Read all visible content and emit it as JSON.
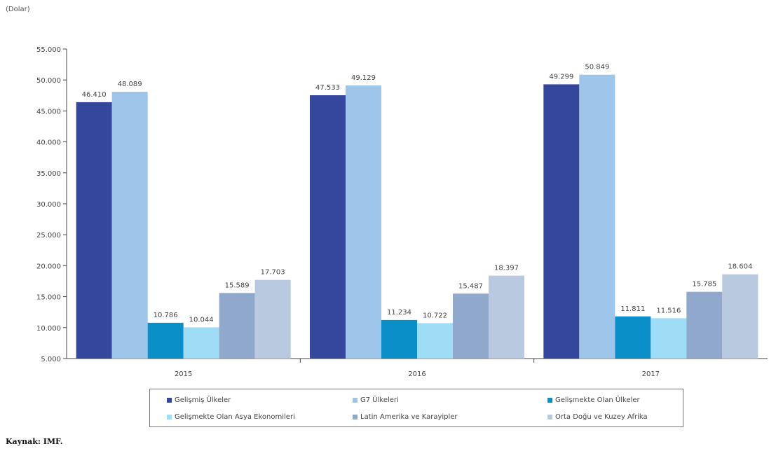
{
  "unit_label": "(Dolar)",
  "source": "Kaynak: IMF.",
  "colors": [
    "#35479c",
    "#9ec5ea",
    "#0a8fc8",
    "#9fdcf6",
    "#8fa8cc",
    "#b9c9e0"
  ],
  "chart_data": {
    "type": "bar",
    "title": "",
    "xlabel": "",
    "ylabel": "(Dolar)",
    "ylim": [
      5000,
      55000
    ],
    "yticks": [
      "5.000",
      "10.000",
      "15.000",
      "20.000",
      "25.000",
      "30.000",
      "35.000",
      "40.000",
      "45.000",
      "50.000",
      "55.000"
    ],
    "ytick_values": [
      5000,
      10000,
      15000,
      20000,
      25000,
      30000,
      35000,
      40000,
      45000,
      50000,
      55000
    ],
    "grid": false,
    "legend_position": "bottom",
    "categories": [
      "2015",
      "2016",
      "2017"
    ],
    "series": [
      {
        "name": "Gelişmiş Ülkeler",
        "values": [
          46410,
          47533,
          49299
        ],
        "labels": [
          "46.410",
          "47.533",
          "49.299"
        ]
      },
      {
        "name": "G7 Ülkeleri",
        "values": [
          48089,
          49129,
          50849
        ],
        "labels": [
          "48.089",
          "49.129",
          "50.849"
        ]
      },
      {
        "name": "Gelişmekte Olan Ülkeler",
        "values": [
          10786,
          11234,
          11811
        ],
        "labels": [
          "10.786",
          "11.234",
          "11.811"
        ]
      },
      {
        "name": "Gelişmekte Olan Asya Ekonomileri",
        "values": [
          10044,
          10722,
          11516
        ],
        "labels": [
          "10.044",
          "10.722",
          "11.516"
        ]
      },
      {
        "name": "Latin Amerika ve Karayipler",
        "values": [
          15589,
          15487,
          15785
        ],
        "labels": [
          "15.589",
          "15.487",
          "15.785"
        ]
      },
      {
        "name": "Orta Doğu ve Kuzey Afrika",
        "values": [
          17703,
          18397,
          18604
        ],
        "labels": [
          "17.703",
          "18.397",
          "18.604"
        ]
      }
    ]
  }
}
